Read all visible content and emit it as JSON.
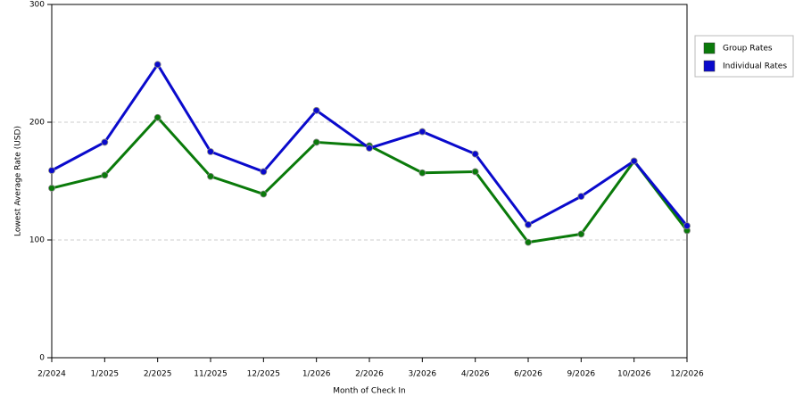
{
  "chart_data": {
    "type": "line",
    "x_label": "Month of Check In",
    "y_label": "Lowest Average Rate (USD)",
    "categories": [
      "2/2024",
      "1/2025",
      "2/2025",
      "11/2025",
      "12/2025",
      "1/2026",
      "2/2026",
      "3/2026",
      "4/2026",
      "6/2026",
      "9/2026",
      "10/2026",
      "12/2026"
    ],
    "series": [
      {
        "name": "Group Rates",
        "color": "#0a7a0a",
        "values": [
          144,
          155,
          204,
          154,
          139,
          183,
          180,
          157,
          158,
          98,
          105,
          167,
          108
        ]
      },
      {
        "name": "Individual Rates",
        "color": "#0a0acc",
        "values": [
          159,
          183,
          249,
          175,
          158,
          210,
          178,
          192,
          173,
          113,
          137,
          167,
          112
        ]
      }
    ],
    "ylim": [
      0,
      300
    ],
    "yticks": [
      0,
      100,
      200,
      300
    ],
    "grid": true,
    "legend": "right"
  }
}
